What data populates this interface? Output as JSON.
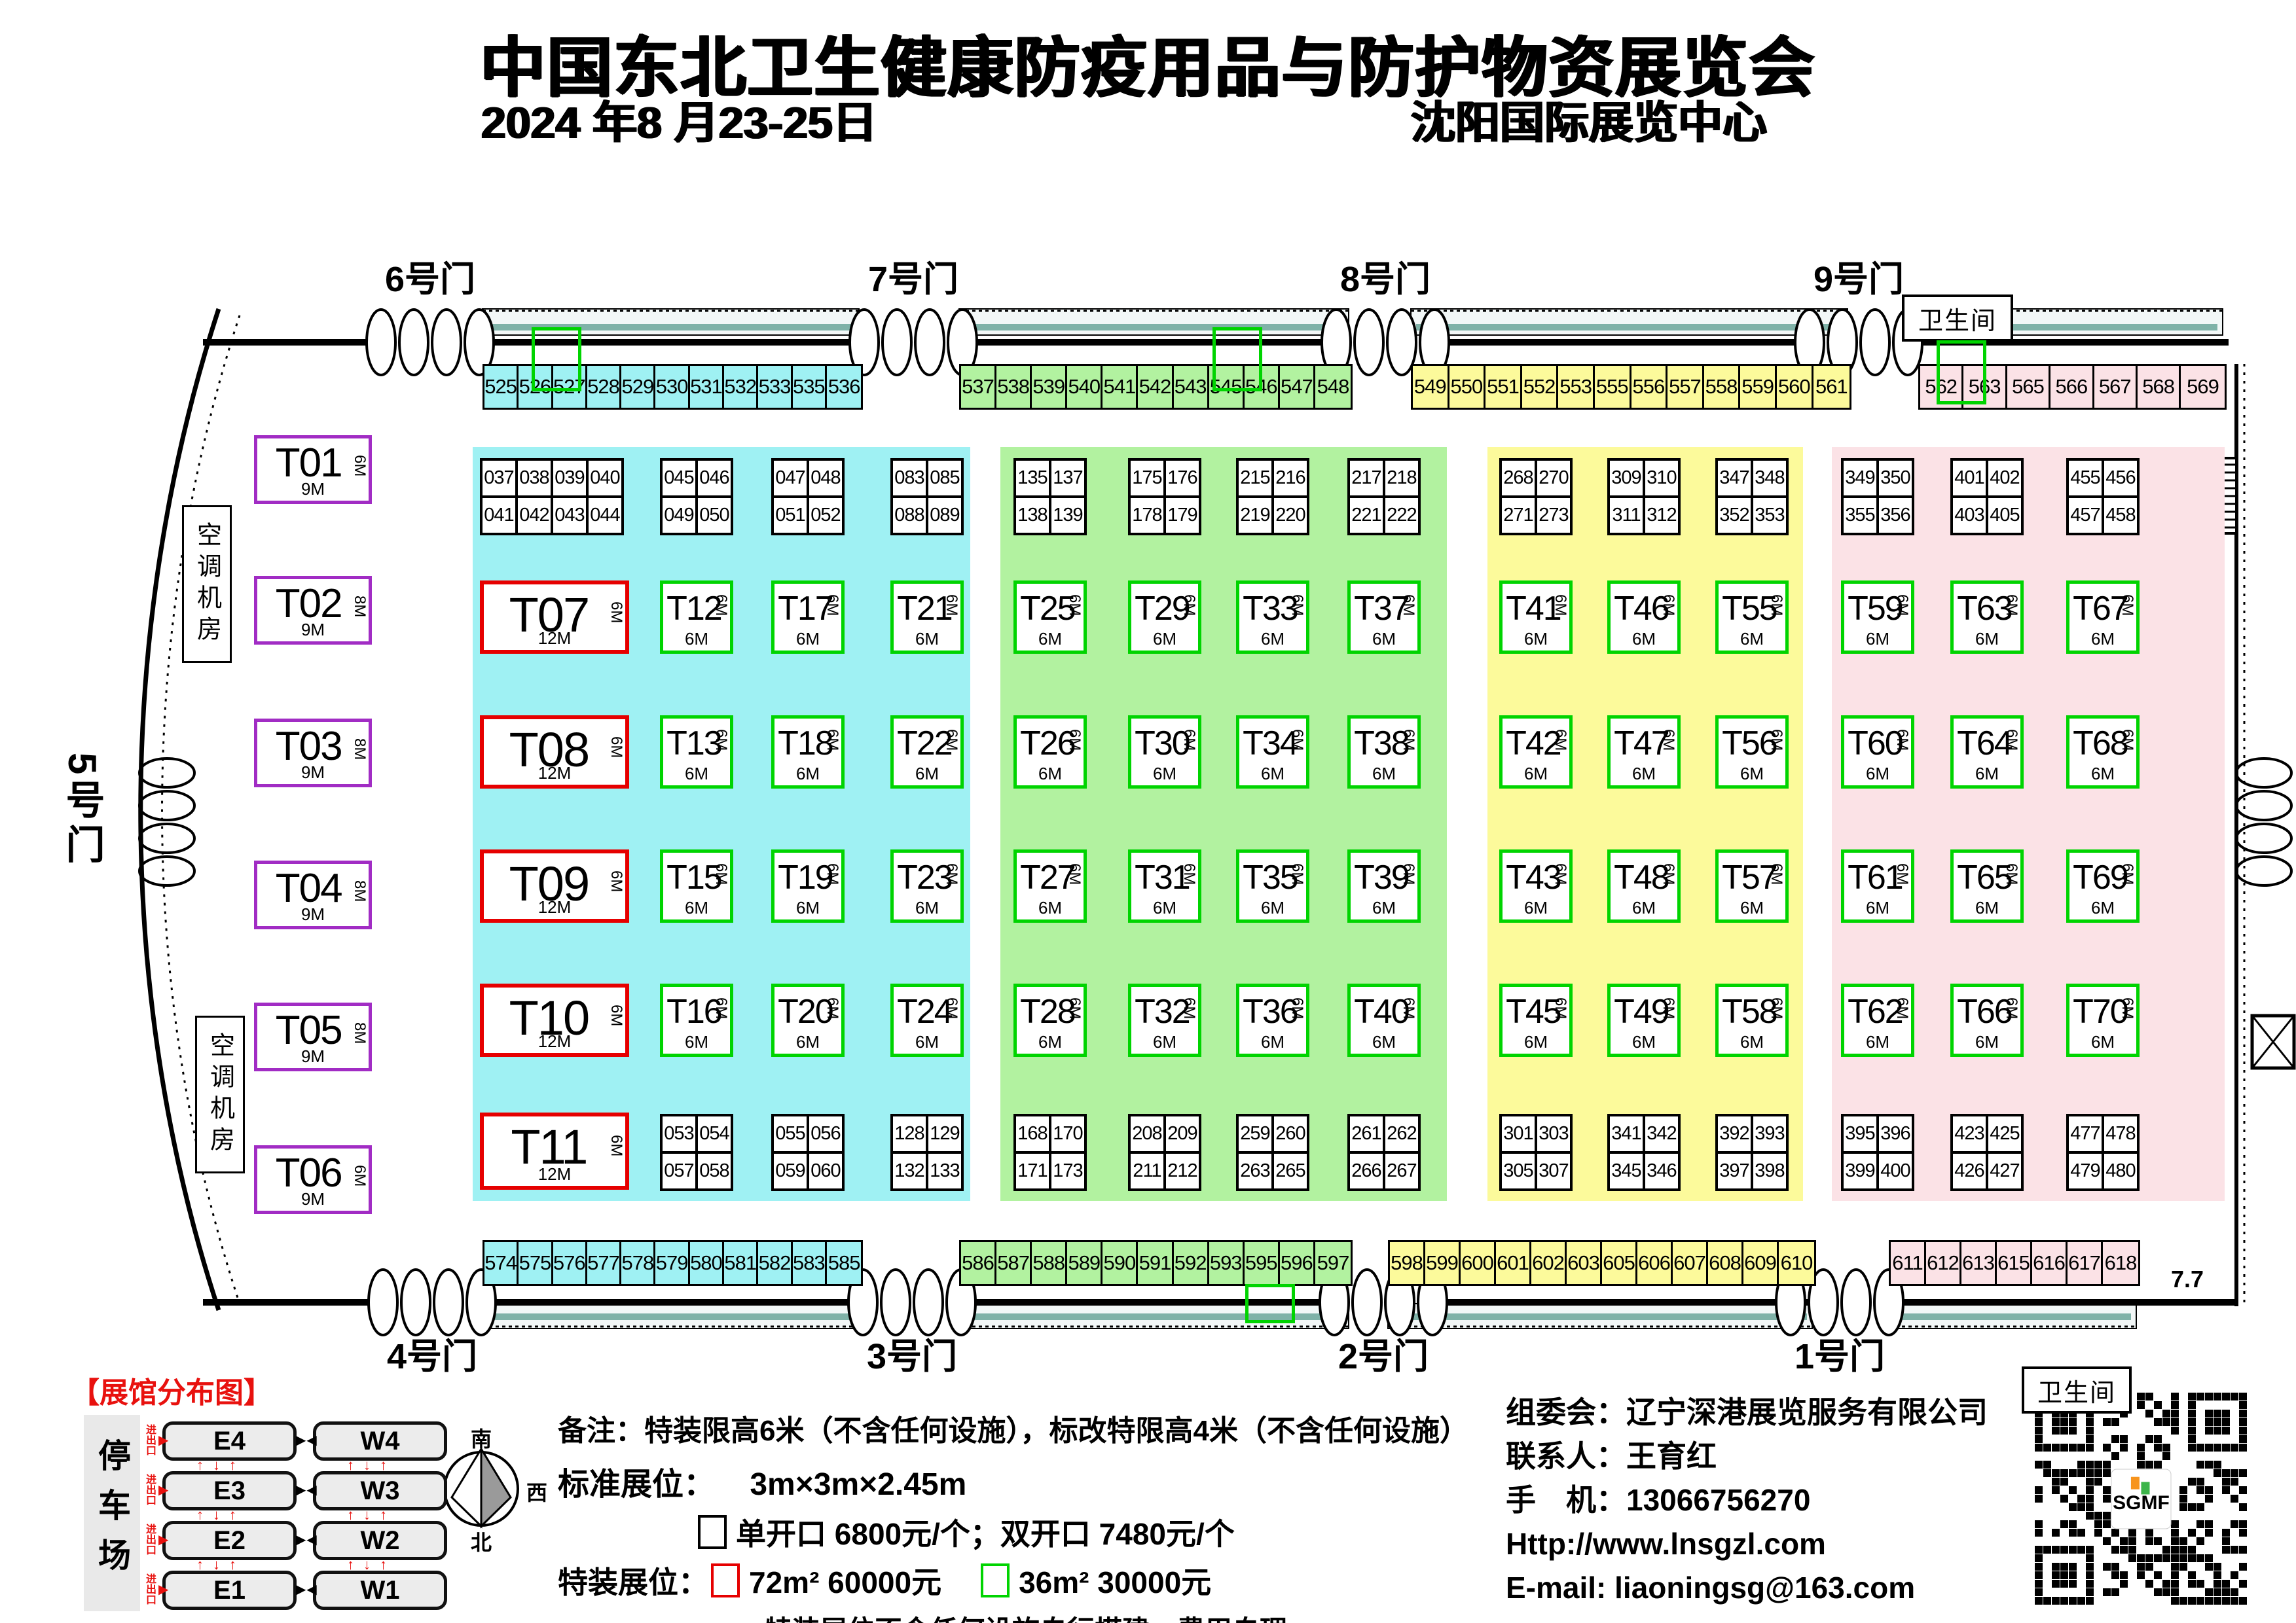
{
  "header": {
    "title": "中国东北卫生健康防疫用品与防护物资展览会",
    "date": "2024 年8 月23-25日",
    "venue": "沈阳国际展览中心"
  },
  "gates": {
    "top": [
      "6号门",
      "7号门",
      "8号门",
      "9号门"
    ],
    "bottom": [
      "4号门",
      "3号门",
      "2号门",
      "1号门"
    ],
    "left": "5号门"
  },
  "labels": {
    "restroom": "卫生间",
    "ac_room": "空调机房",
    "corner_note": "7.7"
  },
  "colors": {
    "cyan": "#9ff1f3",
    "green": "#b2f2a0",
    "yellow": "#fcfa9b",
    "pink": "#fbe2e6",
    "purple_border": "#a12cc4",
    "red_border": "#e60000",
    "green_border": "#00d400",
    "accent_red": "#e8110e"
  },
  "strips": {
    "top": [
      {
        "zone": "cyan",
        "cells": [
          "525",
          "526",
          "527",
          "528",
          "529",
          "530",
          "531",
          "532",
          "533",
          "535",
          "536"
        ]
      },
      {
        "zone": "green",
        "cells": [
          "537",
          "538",
          "539",
          "540",
          "541",
          "542",
          "543",
          "545",
          "546",
          "547",
          "548"
        ]
      },
      {
        "zone": "yellow",
        "cells": [
          "549",
          "550",
          "551",
          "552",
          "553",
          "555",
          "556",
          "557",
          "558",
          "559",
          "560",
          "561"
        ]
      },
      {
        "zone": "pink",
        "cells": [
          "562",
          "563",
          "565",
          "566",
          "567",
          "568",
          "569"
        ]
      }
    ],
    "bottom": [
      {
        "zone": "cyan",
        "cells": [
          "574",
          "575",
          "576",
          "577",
          "578",
          "579",
          "580",
          "581",
          "582",
          "583",
          "585"
        ]
      },
      {
        "zone": "green",
        "cells": [
          "586",
          "587",
          "588",
          "589",
          "590",
          "591",
          "592",
          "593",
          "595",
          "596",
          "597"
        ]
      },
      {
        "zone": "yellow",
        "cells": [
          "598",
          "599",
          "600",
          "601",
          "602",
          "603",
          "605",
          "606",
          "607",
          "608",
          "609",
          "610"
        ]
      },
      {
        "zone": "pink",
        "cells": [
          "611",
          "612",
          "613",
          "615",
          "616",
          "617",
          "618"
        ]
      }
    ]
  },
  "dims": {
    "big": {
      "side": "6M",
      "bottom": "12M"
    },
    "std": {
      "side": "6M",
      "bottom": "6M"
    },
    "left_bottom": "9M"
  },
  "left_booths": [
    {
      "label": "T01",
      "side": "6M"
    },
    {
      "label": "T02",
      "side": "8M"
    },
    {
      "label": "T03",
      "side": "8M"
    },
    {
      "label": "T04",
      "side": "8M"
    },
    {
      "label": "T05",
      "side": "8M"
    },
    {
      "label": "T06",
      "side": "6M"
    }
  ],
  "zones": [
    {
      "id": "cyan",
      "top_blocks": [
        [
          [
            "037",
            "038",
            "039",
            "040"
          ],
          [
            "041",
            "042",
            "043",
            "044"
          ]
        ],
        [
          [
            "045",
            "046"
          ],
          [
            "049",
            "050"
          ]
        ],
        [
          [
            "047",
            "048"
          ],
          [
            "051",
            "052"
          ]
        ],
        [
          [
            "083",
            "085"
          ],
          [
            "088",
            "089"
          ]
        ]
      ],
      "columns": [
        {
          "type": "big",
          "labels": [
            "T07",
            "T08",
            "T09",
            "T10"
          ]
        },
        {
          "type": "std",
          "labels": [
            "T12",
            "T13",
            "T15",
            "T16"
          ]
        },
        {
          "type": "std",
          "labels": [
            "T17",
            "T18",
            "T19",
            "T20"
          ]
        },
        {
          "type": "std",
          "labels": [
            "T21",
            "T22",
            "T23",
            "T24"
          ]
        }
      ],
      "bottom_booth": {
        "label": "T11"
      },
      "bottom_blocks": [
        [
          [
            "053",
            "054"
          ],
          [
            "057",
            "058"
          ]
        ],
        [
          [
            "055",
            "056"
          ],
          [
            "059",
            "060"
          ]
        ],
        [
          [
            "128",
            "129"
          ],
          [
            "132",
            "133"
          ]
        ]
      ]
    },
    {
      "id": "green",
      "top_blocks": [
        [
          [
            "135",
            "137"
          ],
          [
            "138",
            "139"
          ]
        ],
        [
          [
            "175",
            "176"
          ],
          [
            "178",
            "179"
          ]
        ],
        [
          [
            "215",
            "216"
          ],
          [
            "219",
            "220"
          ]
        ],
        [
          [
            "217",
            "218"
          ],
          [
            "221",
            "222"
          ]
        ]
      ],
      "columns": [
        {
          "type": "std",
          "labels": [
            "T25",
            "T26",
            "T27",
            "T28"
          ]
        },
        {
          "type": "std",
          "labels": [
            "T29",
            "T30",
            "T31",
            "T32"
          ]
        },
        {
          "type": "std",
          "labels": [
            "T33",
            "T34",
            "T35",
            "T36"
          ]
        },
        {
          "type": "std",
          "labels": [
            "T37",
            "T38",
            "T39",
            "T40"
          ]
        }
      ],
      "bottom_blocks": [
        [
          [
            "168",
            "170"
          ],
          [
            "171",
            "173"
          ]
        ],
        [
          [
            "208",
            "209"
          ],
          [
            "211",
            "212"
          ]
        ],
        [
          [
            "259",
            "260"
          ],
          [
            "263",
            "265"
          ]
        ],
        [
          [
            "261",
            "262"
          ],
          [
            "266",
            "267"
          ]
        ]
      ]
    },
    {
      "id": "yellow",
      "top_blocks": [
        [
          [
            "268",
            "270"
          ],
          [
            "271",
            "273"
          ]
        ],
        [
          [
            "309",
            "310"
          ],
          [
            "311",
            "312"
          ]
        ],
        [
          [
            "347",
            "348"
          ],
          [
            "352",
            "353"
          ]
        ]
      ],
      "columns": [
        {
          "type": "std",
          "labels": [
            "T41",
            "T42",
            "T43",
            "T45"
          ]
        },
        {
          "type": "std",
          "labels": [
            "T46",
            "T47",
            "T48",
            "T49"
          ]
        },
        {
          "type": "std",
          "labels": [
            "T55",
            "T56",
            "T57",
            "T58"
          ]
        }
      ],
      "bottom_blocks": [
        [
          [
            "301",
            "303"
          ],
          [
            "305",
            "307"
          ]
        ],
        [
          [
            "341",
            "342"
          ],
          [
            "345",
            "346"
          ]
        ],
        [
          [
            "392",
            "393"
          ],
          [
            "397",
            "398"
          ]
        ]
      ]
    },
    {
      "id": "pink",
      "top_blocks": [
        [
          [
            "349",
            "350"
          ],
          [
            "355",
            "356"
          ]
        ],
        [
          [
            "401",
            "402"
          ],
          [
            "403",
            "405"
          ]
        ],
        [
          [
            "455",
            "456"
          ],
          [
            "457",
            "458"
          ]
        ]
      ],
      "columns": [
        {
          "type": "std",
          "labels": [
            "T59",
            "T60",
            "T61",
            "T62"
          ]
        },
        {
          "type": "std",
          "labels": [
            "T63",
            "T64",
            "T65",
            "T66"
          ]
        },
        {
          "type": "std",
          "labels": [
            "T67",
            "T68",
            "T69",
            "T70"
          ]
        }
      ],
      "bottom_blocks": [
        [
          [
            "395",
            "396"
          ],
          [
            "399",
            "400"
          ]
        ],
        [
          [
            "423",
            "425"
          ],
          [
            "426",
            "427"
          ]
        ],
        [
          [
            "477",
            "478"
          ],
          [
            "479",
            "480"
          ]
        ]
      ]
    }
  ],
  "legend": {
    "title": "【展馆分布图】",
    "parking": "停车场",
    "entrance": "进出口",
    "halls": [
      [
        "E4",
        "W4"
      ],
      [
        "E3",
        "W3"
      ],
      [
        "E2",
        "W2"
      ],
      [
        "E1",
        "W1"
      ]
    ],
    "compass": {
      "top": "南",
      "left": "东",
      "right": "西",
      "bottom": "北"
    }
  },
  "notes": {
    "remark": "备注：特装限高6米（不含任何设施），标改特限高4米（不含任何设施）",
    "std_label": "标准展位：",
    "std_size": "3m×3m×2.45m",
    "open_price": "单开口 6800元/个；双开口 7480元/个",
    "special_label": "特装展位：",
    "sp72": "72m² 60000元",
    "sp36": "36m² 30000元",
    "footer": "特装展位不含任何设施自行搭建，费用自理"
  },
  "organizer": {
    "lines": [
      "组委会：辽宁深港展览服务有限公司",
      "联系人：王育红",
      "手　机：13066756270",
      "Http://www.lnsgzl.com",
      "E-mail: liaoningsg@163.com"
    ]
  },
  "qr": {
    "label": "SGMF"
  }
}
